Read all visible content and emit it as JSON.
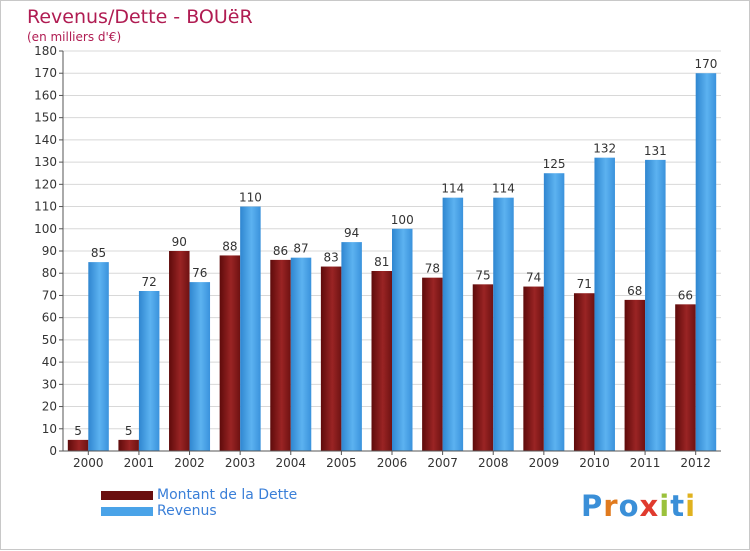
{
  "chart_data": {
    "type": "bar",
    "title": "Revenus/Dette - BOUëR",
    "subtitle": "(en milliers d'€)",
    "categories": [
      "2000",
      "2001",
      "2002",
      "2003",
      "2004",
      "2005",
      "2006",
      "2007",
      "2008",
      "2009",
      "2010",
      "2011",
      "2012"
    ],
    "series": [
      {
        "name": "Montant de la Dette",
        "color": "#8b1a1a",
        "values": [
          5,
          5,
          90,
          88,
          86,
          83,
          81,
          78,
          75,
          74,
          71,
          68,
          66
        ]
      },
      {
        "name": "Revenus",
        "color": "#4aa3e8",
        "values": [
          85,
          72,
          76,
          110,
          87,
          94,
          100,
          114,
          114,
          125,
          132,
          131,
          170
        ]
      }
    ],
    "ylim": [
      0,
      180
    ],
    "ytick_step": 10,
    "grid": true,
    "legend": "bottom-left"
  },
  "logo": {
    "letters": [
      {
        "ch": "P",
        "color": "#3a8fd8"
      },
      {
        "ch": "r",
        "color": "#e07a1e"
      },
      {
        "ch": "o",
        "color": "#3a8fd8"
      },
      {
        "ch": "x",
        "color": "#e03b2e"
      },
      {
        "ch": "i",
        "color": "#9bc13c"
      },
      {
        "ch": "t",
        "color": "#3a8fd8"
      },
      {
        "ch": "i",
        "color": "#e0b21e"
      }
    ]
  }
}
